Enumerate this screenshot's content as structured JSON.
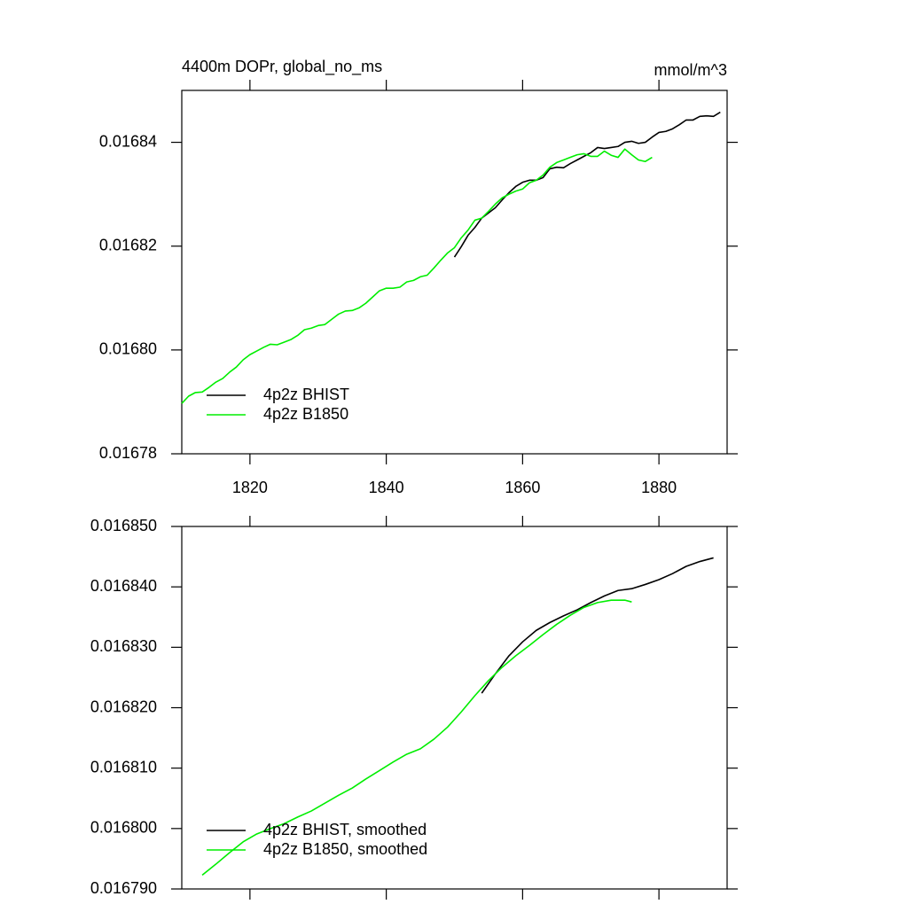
{
  "chart_data": [
    {
      "type": "line",
      "title": "4400m DOPr, global_no_ms",
      "units": "mmol/m^3",
      "xlim": [
        1810,
        1890
      ],
      "xticks": [
        1820,
        1840,
        1860,
        1880
      ],
      "show_xtick_labels": true,
      "ylim": [
        0.01678,
        0.01685
      ],
      "yticks": [
        0.01678,
        {
          "value": 0.0168,
          "label": "0.01680"
        },
        0.01682,
        0.01684
      ],
      "legend": "lower left",
      "series": [
        {
          "name": "4p2z BHIST",
          "color": "#000000",
          "x": [
            1850,
            1851,
            1852,
            1853,
            1854,
            1855,
            1856,
            1857,
            1858,
            1859,
            1860,
            1861,
            1862,
            1863,
            1864,
            1865,
            1866,
            1867,
            1868,
            1869,
            1870,
            1871,
            1872,
            1873,
            1874,
            1875,
            1876,
            1877,
            1878,
            1879,
            1880,
            1881,
            1882,
            1883,
            1884,
            1885,
            1886,
            1887,
            1888,
            1889
          ],
          "values": [
            0.0168179,
            0.0168199,
            0.0168221,
            0.0168236,
            0.0168254,
            0.0168264,
            0.0168274,
            0.0168289,
            0.0168303,
            0.0168315,
            0.0168323,
            0.0168327,
            0.0168327,
            0.0168332,
            0.0168349,
            0.0168352,
            0.0168351,
            0.0168359,
            0.0168366,
            0.0168373,
            0.016838,
            0.016839,
            0.0168388,
            0.016839,
            0.0168392,
            0.01684,
            0.0168402,
            0.0168398,
            0.01684,
            0.016841,
            0.0168419,
            0.0168421,
            0.0168426,
            0.0168434,
            0.0168443,
            0.0168443,
            0.016845,
            0.0168451,
            0.016845,
            0.0168458
          ]
        },
        {
          "name": "4p2z B1850",
          "color": "#00ee00",
          "x": [
            1810,
            1811,
            1812,
            1813,
            1814,
            1815,
            1816,
            1817,
            1818,
            1819,
            1820,
            1821,
            1822,
            1823,
            1824,
            1825,
            1826,
            1827,
            1828,
            1829,
            1830,
            1831,
            1832,
            1833,
            1834,
            1835,
            1836,
            1837,
            1838,
            1839,
            1840,
            1841,
            1842,
            1843,
            1844,
            1845,
            1846,
            1847,
            1848,
            1849,
            1850,
            1851,
            1852,
            1853,
            1854,
            1855,
            1856,
            1857,
            1858,
            1859,
            1860,
            1861,
            1862,
            1863,
            1864,
            1865,
            1866,
            1867,
            1868,
            1869,
            1870,
            1871,
            1872,
            1873,
            1874,
            1875,
            1876,
            1877,
            1878,
            1879
          ],
          "values": [
            0.0167897,
            0.0167911,
            0.0167918,
            0.0167919,
            0.0167928,
            0.0167938,
            0.0167945,
            0.0167957,
            0.0167967,
            0.0167981,
            0.0167991,
            0.0167998,
            0.0168005,
            0.0168011,
            0.016801,
            0.0168015,
            0.016802,
            0.0168028,
            0.0168039,
            0.0168042,
            0.0168047,
            0.0168049,
            0.0168059,
            0.0168069,
            0.0168075,
            0.0168076,
            0.0168081,
            0.016809,
            0.0168102,
            0.0168114,
            0.0168119,
            0.0168119,
            0.0168121,
            0.0168131,
            0.0168134,
            0.0168141,
            0.0168144,
            0.0168158,
            0.0168173,
            0.0168187,
            0.0168197,
            0.0168216,
            0.0168231,
            0.016825,
            0.0168254,
            0.0168267,
            0.0168281,
            0.0168293,
            0.01683,
            0.0168306,
            0.016831,
            0.0168322,
            0.0168327,
            0.0168337,
            0.0168352,
            0.0168361,
            0.0168366,
            0.0168371,
            0.0168376,
            0.0168378,
            0.0168373,
            0.0168373,
            0.0168383,
            0.0168375,
            0.0168371,
            0.0168387,
            0.0168376,
            0.0168366,
            0.0168363,
            0.0168371
          ]
        }
      ]
    },
    {
      "type": "line",
      "xlim": [
        1810,
        1890
      ],
      "xticks": [
        1820,
        1840,
        1860,
        1880
      ],
      "show_xtick_labels": false,
      "ylim": [
        0.01679,
        0.01685
      ],
      "yticks": [
        {
          "value": 0.01679,
          "label": "0.016790"
        },
        {
          "value": 0.0168,
          "label": "0.016800"
        },
        {
          "value": 0.01681,
          "label": "0.016810"
        },
        {
          "value": 0.01682,
          "label": "0.016820"
        },
        {
          "value": 0.01683,
          "label": "0.016830"
        },
        {
          "value": 0.01684,
          "label": "0.016840"
        },
        {
          "value": 0.01685,
          "label": "0.016850"
        }
      ],
      "legend": "lower left",
      "series": [
        {
          "name": "4p2z BHIST, smoothed",
          "color": "#000000",
          "x": [
            1854,
            1856,
            1858,
            1860,
            1862,
            1864,
            1866,
            1868,
            1870,
            1872,
            1874,
            1876,
            1878,
            1880,
            1882,
            1884,
            1886,
            1888
          ],
          "values": [
            0.0168224,
            0.0168256,
            0.0168286,
            0.0168309,
            0.0168328,
            0.0168341,
            0.0168352,
            0.0168362,
            0.0168374,
            0.0168385,
            0.0168394,
            0.0168397,
            0.0168404,
            0.0168412,
            0.0168422,
            0.0168434,
            0.0168442,
            0.0168448
          ]
        },
        {
          "name": "4p2z B1850, smoothed",
          "color": "#00ee00",
          "x": [
            1813,
            1815,
            1817,
            1819,
            1821,
            1823,
            1825,
            1827,
            1829,
            1831,
            1833,
            1835,
            1837,
            1839,
            1841,
            1843,
            1845,
            1847,
            1849,
            1851,
            1853,
            1855,
            1857,
            1859,
            1861,
            1863,
            1865,
            1867,
            1869,
            1871,
            1873,
            1875,
            1876
          ],
          "values": [
            0.0167923,
            0.0167941,
            0.016796,
            0.0167978,
            0.0167991,
            0.0168,
            0.0168008,
            0.0168019,
            0.0168029,
            0.0168042,
            0.0168055,
            0.0168067,
            0.0168082,
            0.0168096,
            0.016811,
            0.0168123,
            0.0168132,
            0.0168148,
            0.0168168,
            0.0168193,
            0.016822,
            0.0168245,
            0.0168267,
            0.0168286,
            0.0168303,
            0.0168321,
            0.0168338,
            0.0168353,
            0.0168366,
            0.0168374,
            0.0168378,
            0.0168378,
            0.0168375
          ]
        }
      ]
    }
  ]
}
